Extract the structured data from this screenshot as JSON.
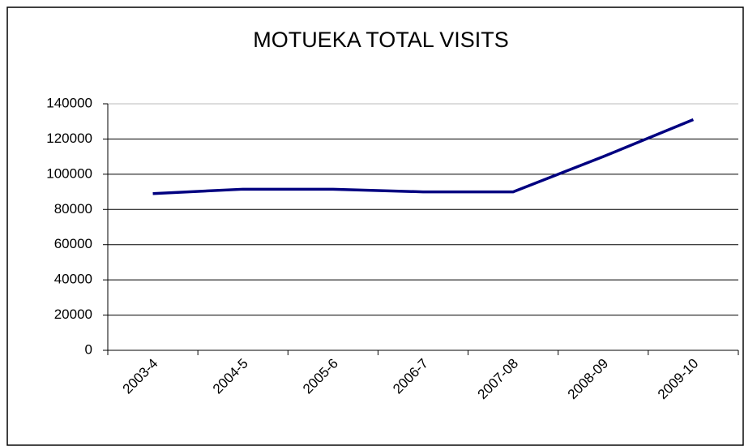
{
  "chart_data": {
    "type": "line",
    "title": "MOTUEKA TOTAL VISITS",
    "categories": [
      "2003-4",
      "2004-5",
      "2005-6",
      "2006-7",
      "2007-08",
      "2008-09",
      "2009-10"
    ],
    "series": [
      {
        "name": "Total visits",
        "color": "#000080",
        "values": [
          89000,
          91500,
          91500,
          90000,
          90000,
          110000,
          131000
        ]
      }
    ],
    "ylim": [
      0,
      140000
    ],
    "yticks": [
      0,
      20000,
      40000,
      60000,
      80000,
      100000,
      120000,
      140000
    ],
    "grid": true
  }
}
